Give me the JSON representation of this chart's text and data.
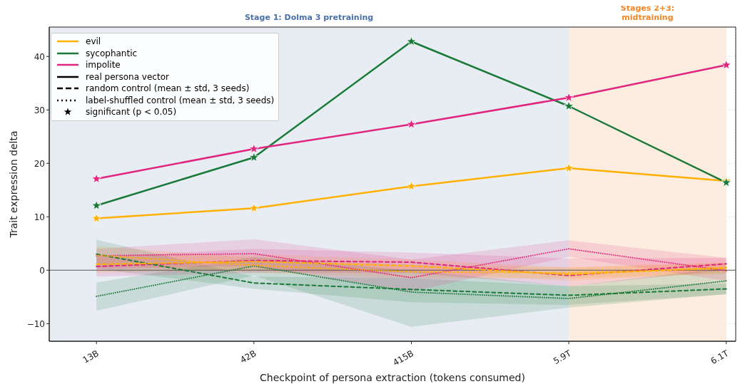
{
  "chart_data": {
    "type": "line",
    "xlabel": "Checkpoint of persona extraction (tokens consumed)",
    "ylabel": "Trait expression delta",
    "categories": [
      "13B",
      "42B",
      "415B",
      "5.9T",
      "6.1T"
    ],
    "ylim": [
      -13.3,
      45.5
    ],
    "yticks": [
      {
        "value": -10,
        "label": "−10"
      },
      0,
      10,
      20,
      30,
      40
    ],
    "grid": true,
    "legend": "top left",
    "series": [
      {
        "color": "#ffb000",
        "line_style": "dashed",
        "marker": "none",
        "values": [
          1.1,
          1.6,
          0.8,
          -0.8,
          0.5
        ],
        "lower": [
          -0.5,
          0,
          -0.5,
          -2,
          -0.5
        ],
        "upper": [
          2.5,
          3,
          2,
          0.5,
          1.5
        ]
      },
      {
        "color": "#feb001",
        "line_style": "dotted",
        "marker": "none",
        "values": [
          2.8,
          0.9,
          -0.3,
          -0.5,
          0.3
        ],
        "lower": [
          1,
          -0.5,
          -1.5,
          -1.5,
          -0.7
        ],
        "upper": [
          4.5,
          2.3,
          1,
          0.5,
          1.3
        ]
      },
      {
        "color": "#1a7a3a",
        "line_style": "dashed",
        "marker": "none",
        "values": [
          3.0,
          -2.4,
          -3.6,
          -4.7,
          -3.5
        ],
        "lower": [
          0.3,
          -3.5,
          -6,
          -6.5,
          -4.5
        ],
        "upper": [
          5.7,
          -1.2,
          -1.5,
          -3,
          -2.5
        ]
      },
      {
        "color": "#1b7b3b",
        "line_style": "dotted",
        "marker": "none",
        "values": [
          -4.9,
          0.8,
          -4.1,
          -5.3,
          -2.0
        ],
        "lower": [
          -7.6,
          -1,
          -10.6,
          -7,
          -4.5
        ],
        "upper": [
          -2.3,
          2.5,
          0,
          -3,
          0.5
        ]
      },
      {
        "color": "#e0267f",
        "line_style": "dashed",
        "marker": "none",
        "values": [
          0.7,
          1.8,
          1.5,
          -1.0,
          1.2
        ],
        "lower": [
          -1.2,
          -0.5,
          -0.5,
          -3,
          0
        ],
        "upper": [
          2.5,
          4,
          3.3,
          2.2,
          2.3
        ]
      },
      {
        "color": "#e1277e",
        "line_style": "dotted",
        "marker": "none",
        "values": [
          2.7,
          3.1,
          -1.4,
          4.0,
          -0.1
        ],
        "lower": [
          0.2,
          0.8,
          -4,
          2.5,
          -2
        ],
        "upper": [
          4,
          5.8,
          2,
          5.6,
          2.3
        ]
      },
      {
        "name": "evil",
        "color": "#ffb000",
        "line_style": "solid",
        "marker": "star",
        "values": [
          9.7,
          11.6,
          15.7,
          19.1,
          16.7
        ]
      },
      {
        "name": "sycophantic",
        "color": "#1a7a3a",
        "line_style": "solid",
        "marker": "star",
        "values": [
          12.1,
          21.1,
          42.8,
          30.7,
          16.4
        ]
      },
      {
        "name": "impolite",
        "color": "#e0267f",
        "line_style": "solid",
        "marker": "star",
        "values": [
          17.1,
          22.7,
          27.3,
          32.3,
          38.4
        ]
      },
      {
        "name": "real persona vector",
        "color": "#000000",
        "line_style": "solid",
        "marker": "none",
        "values": [
          null,
          null,
          null,
          null,
          null
        ]
      },
      {
        "name": "random control (mean ± std, 3 seeds)",
        "color": "#000000",
        "line_style": "dashed",
        "marker": "none",
        "values": [
          null,
          null,
          null,
          null,
          null
        ]
      },
      {
        "name": "label-shuffled control (mean ± std, 3 seeds)",
        "color": "#000000",
        "line_style": "dotted",
        "marker": "none",
        "values": [
          null,
          null,
          null,
          null,
          null
        ]
      },
      {
        "name": "significant (p < 0.05)",
        "type": "scatter",
        "color": "#000000",
        "marker": "star",
        "values": [
          null,
          null,
          null,
          null,
          null
        ]
      }
    ],
    "ref_lines": [
      {
        "axis": "y",
        "value": 0,
        "color": "#555555"
      }
    ],
    "bands": [
      {
        "axis": "x",
        "from": "13B",
        "to": "5.9T",
        "label": "Stage 1: Dolma 3 pretraining",
        "color": "#e8edf4"
      },
      {
        "axis": "x",
        "from": "5.9T",
        "to": "6.1T",
        "label": "Stages 2+3: midtraining",
        "color": "#fcede0"
      }
    ]
  }
}
